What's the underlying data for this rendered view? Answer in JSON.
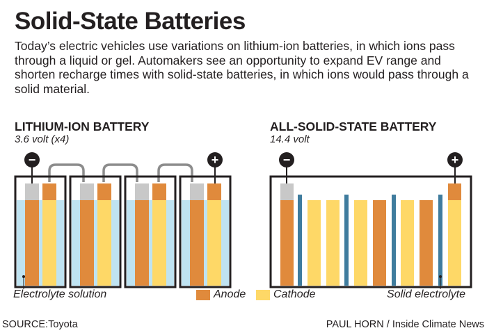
{
  "title": "Solid-State Batteries",
  "intro": "Today’s electric vehicles use variations on lithium-ion batteries, in which ions pass through a liquid or gel. Automakers see an opportunity to expand EV range and shorten recharge times with solid-state batteries, in which ions would pass through a solid material.",
  "lithium": {
    "title": "LITHIUM-ION BATTERY",
    "subtitle": "3.6 volt (x4)",
    "cell_count": 4,
    "negative_symbol": "−",
    "positive_symbol": "+",
    "electrolyte_label": "Electrolyte solution"
  },
  "solid": {
    "title": "ALL-SOLID-STATE BATTERY",
    "subtitle": "14.4 volt",
    "negative_symbol": "−",
    "positive_symbol": "+",
    "electrolyte_label": "Solid electrolyte"
  },
  "legend": {
    "anode": "Anode",
    "cathode": "Cathode"
  },
  "source": "SOURCE:Toyota",
  "credit": "PAUL HORN / Inside Climate News",
  "colors": {
    "anode": "#e08a3c",
    "cathode": "#fed867",
    "electrolyte": "#bfe3f1",
    "solid_electrolyte": "#3f7c9e",
    "terminal": "#c8c8c8",
    "outline": "#231f20"
  }
}
